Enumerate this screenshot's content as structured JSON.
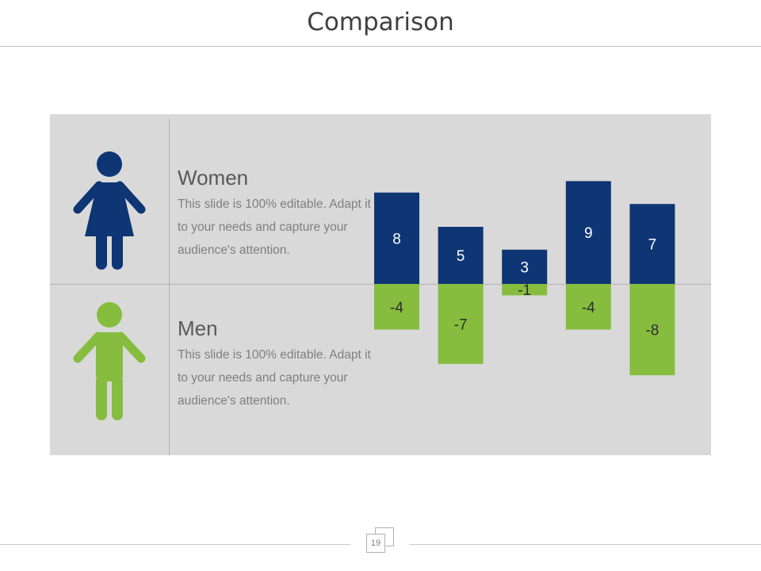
{
  "slide": {
    "title": "Comparison",
    "page_number": "19"
  },
  "groups": [
    {
      "name": "Women",
      "description": "This slide is 100% editable. Adapt it to your needs and capture your audience's attention.",
      "icon": "woman-icon",
      "color": "#0e3574"
    },
    {
      "name": "Men",
      "description": "This slide is 100% editable. Adapt it to your needs and capture your audience's attention.",
      "icon": "man-icon",
      "color": "#86bd3e"
    }
  ],
  "colors": {
    "women": "#0e3574",
    "men": "#86bd3e",
    "panel": "#d9d9d9",
    "title_text": "#404040"
  },
  "chart_data": {
    "type": "bar",
    "categories": [
      "",
      "",
      "",
      "",
      ""
    ],
    "series": [
      {
        "values": [
          8,
          5,
          3,
          9,
          7
        ],
        "color": "#0e3574",
        "label_color": "#ffffff"
      },
      {
        "values": [
          -4,
          -7,
          -1,
          -4,
          -8
        ],
        "color": "#86bd3e",
        "label_color": "#2e2e2e"
      }
    ],
    "ylim": [
      -8,
      9
    ],
    "grid": false,
    "legend": "none",
    "title": "",
    "xlabel": "",
    "ylabel": ""
  }
}
